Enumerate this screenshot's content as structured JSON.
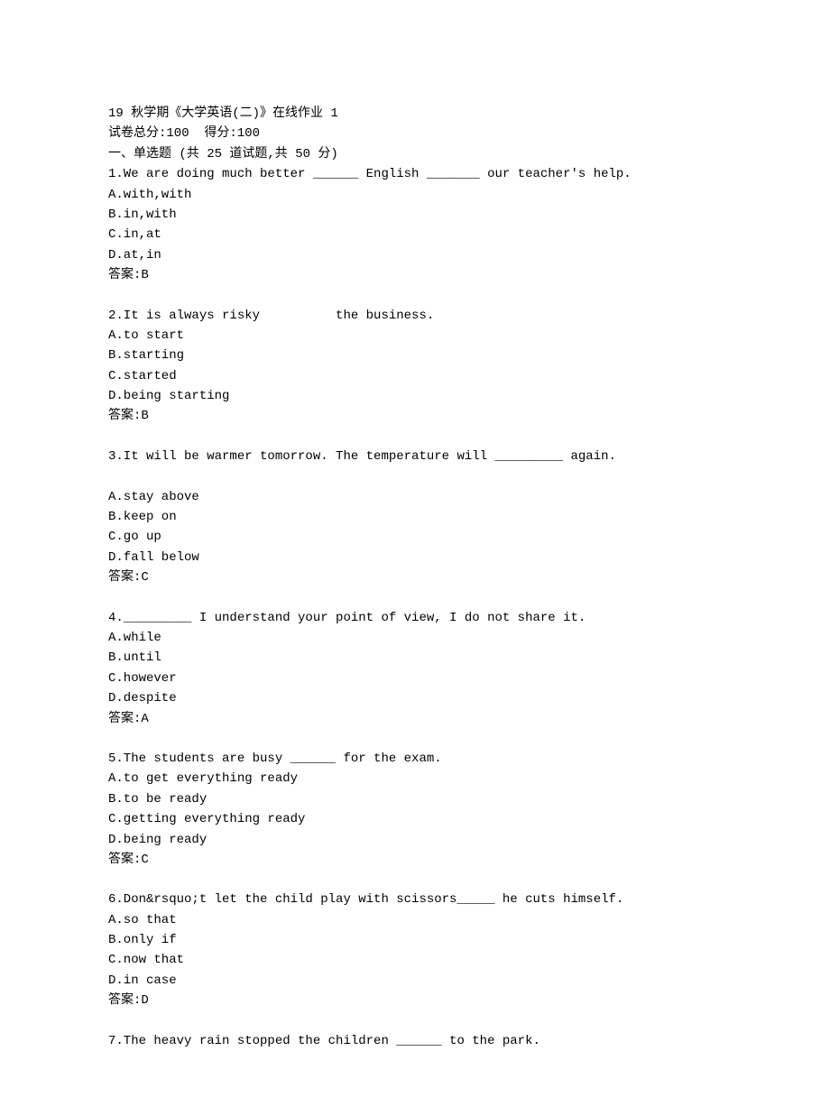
{
  "header": {
    "title": "19 秋学期《大学英语(二)》在线作业 1",
    "scoreLine": "试卷总分:100  得分:100",
    "sectionTitle": "一、单选题 (共 25 道试题,共 50 分)"
  },
  "questions": [
    {
      "number": "1",
      "text": "1.We are doing much better ______ English _______ our teacher's help.",
      "options": [
        "A.with,with",
        "B.in,with",
        "C.in,at",
        "D.at,in"
      ],
      "answer": "答案:B"
    },
    {
      "number": "2",
      "text": "2.It is always risky          the business.",
      "options": [
        "A.to start",
        "B.starting",
        "C.started",
        "D.being starting"
      ],
      "answer": "答案:B"
    },
    {
      "number": "3",
      "text": "3.It will be warmer tomorrow. The temperature will _________ again.",
      "options": [
        "A.stay above",
        "B.keep on",
        "C.go up",
        "D.fall below"
      ],
      "answer": "答案:C"
    },
    {
      "number": "4",
      "text": "4._________ I understand your point of view, I do not share it.",
      "options": [
        "A.while",
        "B.until",
        "C.however",
        "D.despite"
      ],
      "answer": "答案:A"
    },
    {
      "number": "5",
      "text": "5.The students are busy ______ for the exam.",
      "options": [
        "A.to get everything ready",
        "B.to be ready",
        "C.getting everything ready",
        "D.being ready"
      ],
      "answer": "答案:C"
    },
    {
      "number": "6",
      "text": "6.Don&rsquo;t let the child play with scissors_____ he cuts himself.",
      "options": [
        "A.so that",
        "B.only if",
        "C.now that",
        "D.in case"
      ],
      "answer": "答案:D"
    },
    {
      "number": "7",
      "text": "7.The heavy rain stopped the children ______ to the park.",
      "options": [],
      "answer": ""
    }
  ]
}
